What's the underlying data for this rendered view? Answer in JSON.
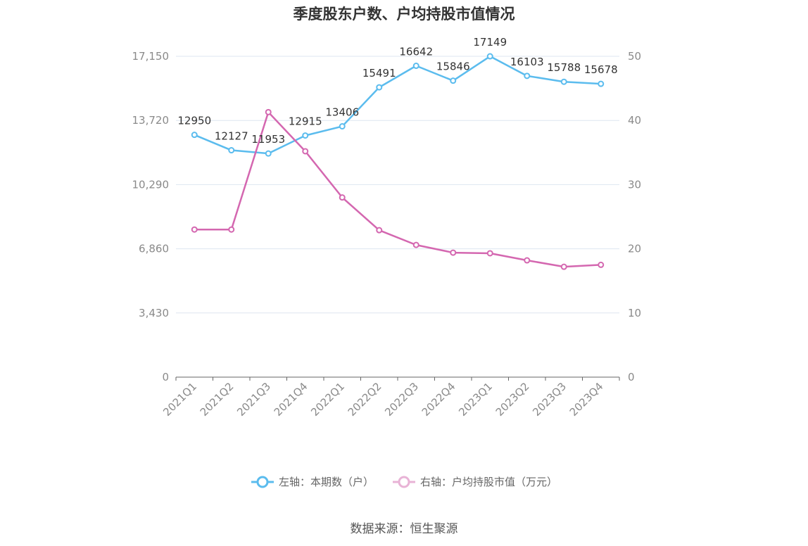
{
  "title": "季度股东户数、户均持股市值情况",
  "source": "数据来源：恒生聚源",
  "colors": {
    "left_series": "#5bbcee",
    "right_series": "#d467b0",
    "grid": "#dde6f0",
    "axis": "#666666"
  },
  "chart_data": {
    "type": "line",
    "title": "季度股东户数、户均持股市值情况",
    "categories": [
      "2021Q1",
      "2021Q2",
      "2021Q3",
      "2021Q4",
      "2022Q1",
      "2022Q2",
      "2022Q3",
      "2022Q4",
      "2023Q1",
      "2023Q2",
      "2023Q3",
      "2023Q4"
    ],
    "left_axis": {
      "ticks": [
        "0",
        "3,430",
        "6,860",
        "10,290",
        "13,720",
        "17,150"
      ],
      "ylim": [
        0,
        17150
      ]
    },
    "right_axis": {
      "ticks": [
        "0",
        "10",
        "20",
        "30",
        "40",
        "50"
      ],
      "ylim": [
        0,
        50
      ]
    },
    "series": [
      {
        "name": "左轴：本期数（户）",
        "axis": "left",
        "values": [
          12950,
          12127,
          11953,
          12915,
          13406,
          15491,
          16642,
          15846,
          17149,
          16103,
          15788,
          15678
        ],
        "labels": [
          "12950",
          "12127",
          "11953",
          "12915",
          "13406",
          "15491",
          "16642",
          "15846",
          "17149",
          "16103",
          "15788",
          "15678"
        ]
      },
      {
        "name": "右轴：户均持股市值（万元）",
        "axis": "right",
        "values": [
          23.0,
          23.0,
          41.3,
          35.2,
          28.0,
          22.9,
          20.6,
          19.4,
          19.3,
          18.2,
          17.2,
          17.5
        ]
      }
    ],
    "grid": true,
    "legend_position": "bottom"
  }
}
